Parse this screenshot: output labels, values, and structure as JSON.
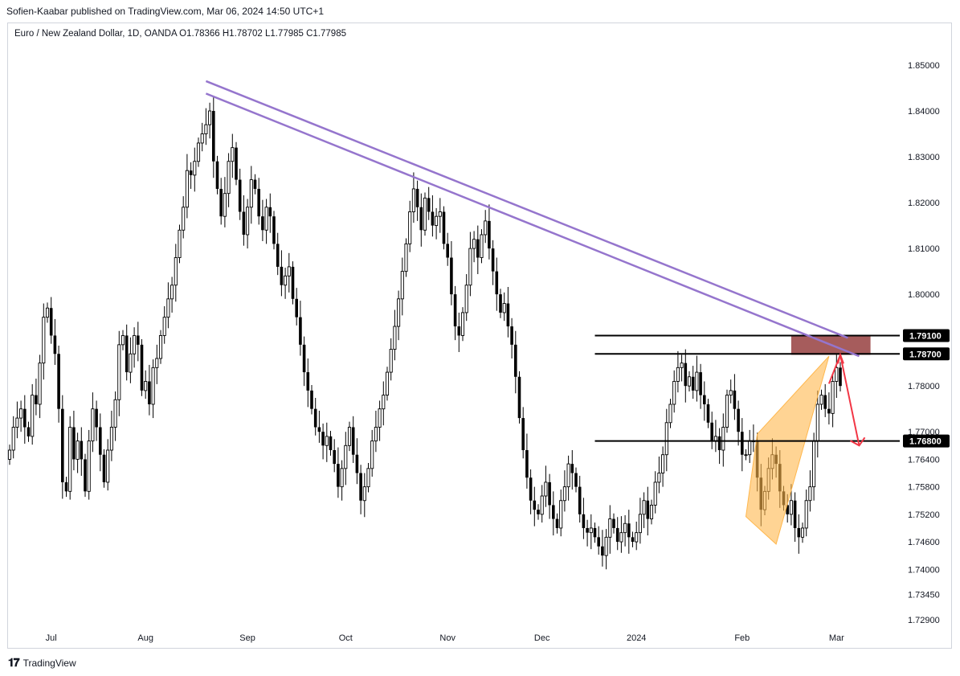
{
  "header": {
    "publisher": "Sofien-Kaabar published on TradingView.com, Mar 06, 2024 14:50 UTC+1",
    "symbol": "Euro / New Zealand Dollar, 1D, OANDA  O1.78366  H1.78702  L1.77985  C1.77985"
  },
  "footer": {
    "logo": "𝟏𝟕",
    "brand": "TradingView"
  },
  "colors": {
    "candle": "#000000",
    "trendline": "#9575cd",
    "zone": "#9c4a4a",
    "pattern": "#ffb74d",
    "arrow": "#f23645",
    "label_bg": "#000000",
    "label_text": "#ffffff"
  },
  "chart_data": {
    "type": "candlestick",
    "ylim": [
      1.7265,
      1.8545
    ],
    "y_ticks": [
      "1.85000",
      "1.84000",
      "1.83000",
      "1.82000",
      "1.81000",
      "1.80000",
      "1.78000",
      "1.77000",
      "1.76400",
      "1.75800",
      "1.75200",
      "1.74600",
      "1.74000",
      "1.73450",
      "1.72900"
    ],
    "x_labels": [
      "Jul",
      "Aug",
      "Sep",
      "Oct",
      "Nov",
      "Dec",
      "2024",
      "Feb",
      "Mar"
    ],
    "price_labels": [
      "1.79100",
      "1.78700",
      "1.76800"
    ],
    "horizontal_levels": [
      1.791,
      1.787,
      1.768
    ],
    "closes": [
      1.766,
      1.771,
      1.773,
      1.775,
      1.771,
      1.769,
      1.778,
      1.776,
      1.785,
      1.795,
      1.797,
      1.791,
      1.787,
      1.775,
      1.759,
      1.757,
      1.771,
      1.764,
      1.768,
      1.764,
      1.757,
      1.768,
      1.775,
      1.771,
      1.765,
      1.759,
      1.766,
      1.771,
      1.777,
      1.789,
      1.791,
      1.783,
      1.787,
      1.791,
      1.789,
      1.779,
      1.781,
      1.776,
      1.784,
      1.786,
      1.791,
      1.795,
      1.799,
      1.802,
      1.808,
      1.814,
      1.819,
      1.827,
      1.826,
      1.829,
      1.833,
      1.835,
      1.837,
      1.84,
      1.829,
      1.823,
      1.817,
      1.822,
      1.829,
      1.832,
      1.825,
      1.818,
      1.813,
      1.819,
      1.825,
      1.823,
      1.817,
      1.814,
      1.819,
      1.817,
      1.811,
      1.806,
      1.802,
      1.804,
      1.806,
      1.799,
      1.795,
      1.789,
      1.783,
      1.779,
      1.775,
      1.771,
      1.77,
      1.767,
      1.769,
      1.766,
      1.763,
      1.758,
      1.762,
      1.767,
      1.771,
      1.765,
      1.761,
      1.755,
      1.758,
      1.762,
      1.768,
      1.771,
      1.775,
      1.778,
      1.783,
      1.788,
      1.793,
      1.799,
      1.805,
      1.811,
      1.818,
      1.823,
      1.819,
      1.814,
      1.821,
      1.818,
      1.815,
      1.817,
      1.818,
      1.811,
      1.808,
      1.8,
      1.793,
      1.791,
      1.796,
      1.802,
      1.81,
      1.812,
      1.808,
      1.813,
      1.816,
      1.81,
      1.805,
      1.8,
      1.796,
      1.798,
      1.793,
      1.789,
      1.782,
      1.773,
      1.766,
      1.76,
      1.755,
      1.753,
      1.752,
      1.756,
      1.759,
      1.754,
      1.751,
      1.749,
      1.755,
      1.758,
      1.763,
      1.761,
      1.758,
      1.752,
      1.749,
      1.748,
      1.749,
      1.747,
      1.745,
      1.743,
      1.747,
      1.751,
      1.749,
      1.746,
      1.748,
      1.75,
      1.747,
      1.746,
      1.748,
      1.752,
      1.755,
      1.751,
      1.754,
      1.759,
      1.761,
      1.765,
      1.772,
      1.776,
      1.781,
      1.784,
      1.785,
      1.78,
      1.782,
      1.779,
      1.783,
      1.778,
      1.776,
      1.772,
      1.768,
      1.769,
      1.766,
      1.771,
      1.778,
      1.779,
      1.775,
      1.77,
      1.765,
      1.765,
      1.768,
      1.768,
      1.76,
      1.753,
      1.757,
      1.762,
      1.765,
      1.763,
      1.757,
      1.754,
      1.752,
      1.755,
      1.749,
      1.747,
      1.749,
      1.755,
      1.758,
      1.768,
      1.776,
      1.778,
      1.775,
      1.774,
      1.781,
      1.784,
      1.78
    ]
  },
  "annotations": {
    "trendlines": [
      {
        "start_bar": 52,
        "start_price": 1.8465,
        "end_bar": 222,
        "end_price": 1.7905
      },
      {
        "start_bar": 52,
        "start_price": 1.8438,
        "end_bar": 225,
        "end_price": 1.7865
      }
    ],
    "resistance_zone": {
      "start_bar": 207,
      "end_bar": 228,
      "top": 1.791,
      "bottom": 1.7868
    },
    "horizontal_segments": [
      {
        "price": 1.791,
        "start_bar": 155
      },
      {
        "price": 1.787,
        "start_bar": 155
      },
      {
        "price": 1.768,
        "start_bar": 155
      }
    ],
    "wedge_pattern": [
      {
        "bar": 195,
        "price": 1.7515
      },
      {
        "bar": 198,
        "price": 1.7695
      },
      {
        "bar": 217,
        "price": 1.7865
      },
      {
        "bar": 203,
        "price": 1.7455
      }
    ],
    "arrow_points": [
      {
        "bar": 217,
        "price": 1.7805
      },
      {
        "bar": 220,
        "price": 1.7868
      },
      {
        "bar": 225,
        "price": 1.767
      }
    ]
  }
}
